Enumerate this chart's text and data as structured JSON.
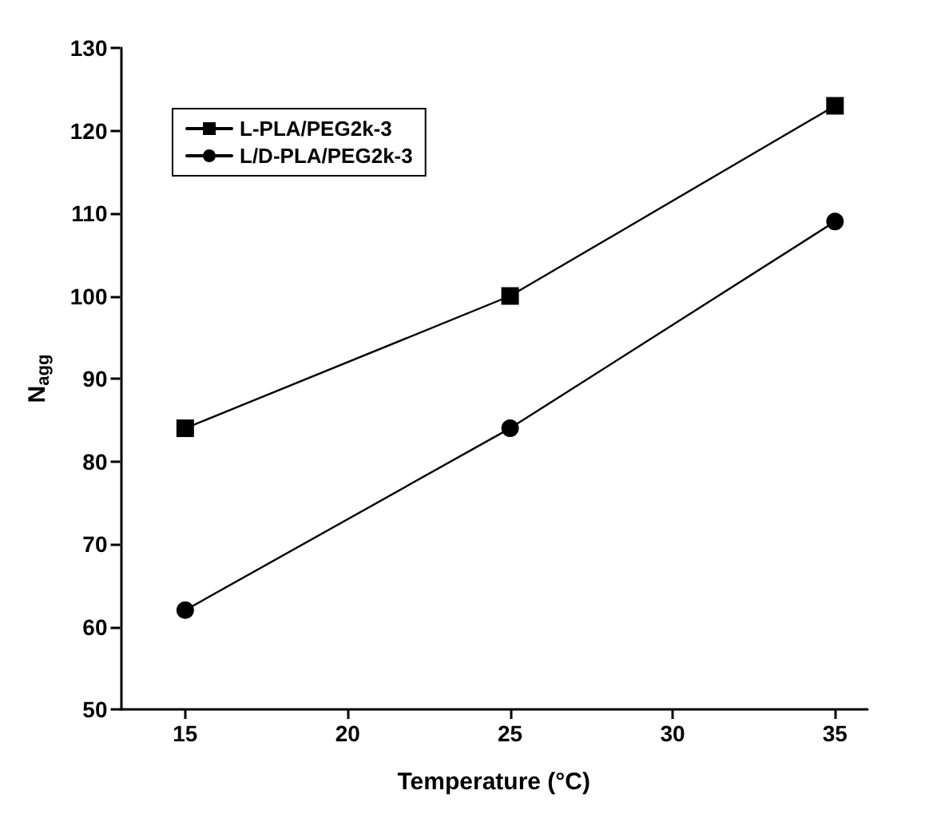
{
  "chart_data": {
    "type": "line",
    "xlabel": "Temperature (°C)",
    "ylabel": "N$_{agg}$",
    "x": [
      15,
      25,
      35
    ],
    "series": [
      {
        "name": "L-PLA/PEG2k-3",
        "color": "#000000",
        "marker": "square",
        "values": [
          84,
          100,
          123
        ]
      },
      {
        "name": "L/D-PLA/PEG2k-3",
        "color": "#000000",
        "marker": "circle",
        "values": [
          62,
          84,
          109
        ]
      }
    ],
    "xlim": [
      13,
      36
    ],
    "xticks": [
      15,
      20,
      25,
      30,
      35
    ],
    "ylim": [
      50,
      130
    ],
    "yticks": [
      50,
      60,
      70,
      80,
      90,
      100,
      110,
      120,
      130
    ],
    "grid": false,
    "legend": "top left",
    "line_style": "solid"
  }
}
